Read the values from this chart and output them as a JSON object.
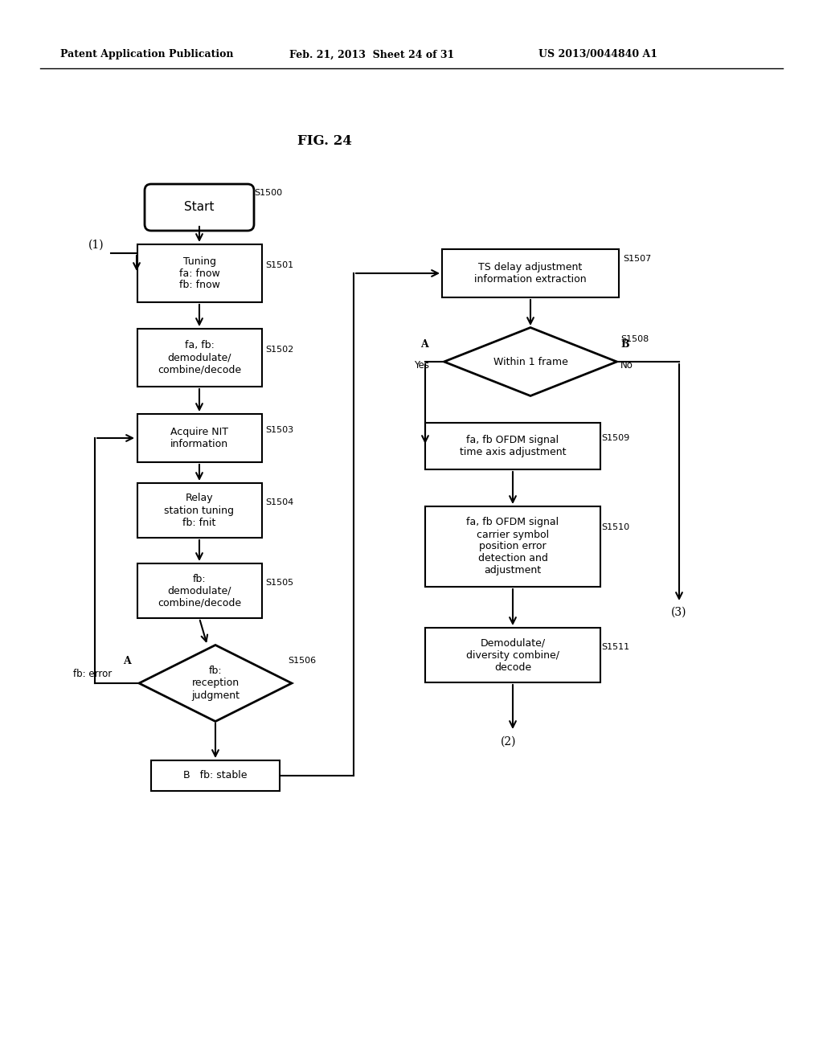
{
  "bg_color": "#ffffff",
  "header_left": "Patent Application Publication",
  "header_mid": "Feb. 21, 2013  Sheet 24 of 31",
  "header_right": "US 2013/0044840 A1",
  "fig_label": "FIG. 24"
}
